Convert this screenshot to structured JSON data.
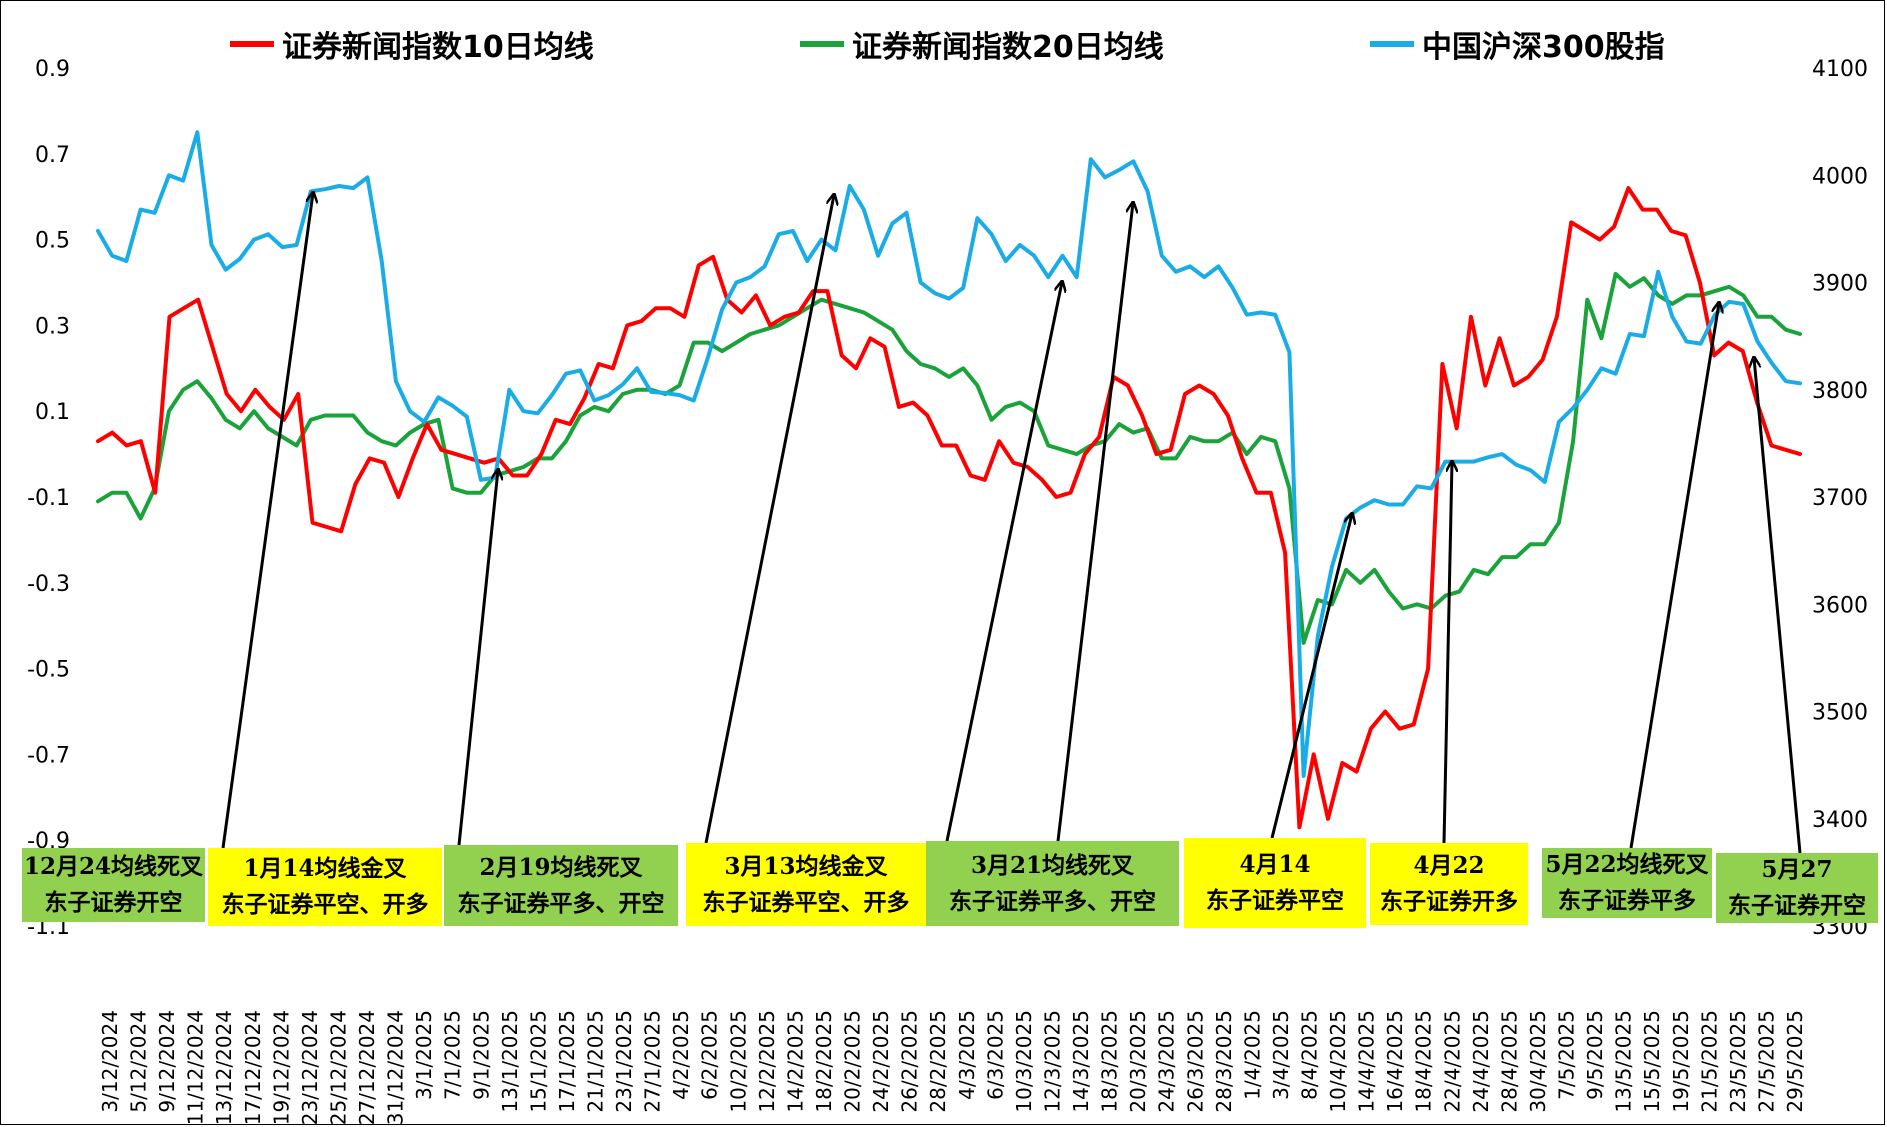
{
  "legend": [
    {
      "label": "证券新闻指数10日均线",
      "color": "#ff0000"
    },
    {
      "label": "证券新闻指数20日均线",
      "color": "#1aa33a"
    },
    {
      "label": "中国沪深300股指",
      "color": "#1aace6"
    }
  ],
  "colors": {
    "yellow_box": "#ffff00",
    "green_box": "#92d050",
    "arrow": "#000000"
  },
  "chart_data": {
    "type": "line",
    "x_tick_labels": [
      "3/12/2024",
      "5/12/2024",
      "9/12/2024",
      "11/12/2024",
      "13/12/2024",
      "17/12/2024",
      "19/12/2024",
      "23/12/2024",
      "25/12/2024",
      "27/12/2024",
      "31/12/2024",
      "3/1/2025",
      "7/1/2025",
      "9/1/2025",
      "13/1/2025",
      "15/1/2025",
      "17/1/2025",
      "21/1/2025",
      "23/1/2025",
      "27/1/2025",
      "4/2/2025",
      "6/2/2025",
      "10/2/2025",
      "12/2/2025",
      "14/2/2025",
      "18/2/2025",
      "20/2/2025",
      "24/2/2025",
      "26/2/2025",
      "28/2/2025",
      "4/3/2025",
      "6/3/2025",
      "10/3/2025",
      "12/3/2025",
      "14/3/2025",
      "18/3/2025",
      "20/3/2025",
      "24/3/2025",
      "26/3/2025",
      "28/3/2025",
      "1/4/2025",
      "3/4/2025",
      "8/4/2025",
      "10/4/2025",
      "14/4/2025",
      "16/4/2025",
      "18/4/2025",
      "22/4/2025",
      "24/4/2025",
      "28/4/2025",
      "30/4/2025",
      "7/5/2025",
      "9/5/2025",
      "13/5/2025",
      "15/5/2025",
      "19/5/2025",
      "21/5/2025",
      "23/5/2025",
      "27/5/2025",
      "29/5/2025"
    ],
    "y_left": {
      "ticks": [
        "0.9",
        "0.7",
        "0.5",
        "0.3",
        "0.1",
        "-0.1",
        "-0.3",
        "-0.5",
        "-0.7",
        "-0.9",
        "-1.1"
      ],
      "ylim": [
        -1.1,
        0.9
      ]
    },
    "y_right": {
      "ticks": [
        "4100",
        "4000",
        "3900",
        "3800",
        "3700",
        "3600",
        "3500",
        "3400",
        "3300"
      ],
      "ylim": [
        3300,
        4100
      ]
    },
    "series": [
      {
        "name": "证券新闻指数10日均线",
        "axis": "left",
        "color": "#ff0000",
        "values": [
          0.03,
          0.05,
          0.02,
          0.03,
          -0.09,
          0.32,
          0.34,
          0.36,
          0.25,
          0.14,
          0.1,
          0.15,
          0.11,
          0.08,
          0.14,
          -0.16,
          -0.17,
          -0.18,
          -0.07,
          -0.01,
          -0.02,
          -0.1,
          -0.01,
          0.07,
          0.01,
          0.0,
          -0.01,
          -0.02,
          -0.01,
          -0.05,
          -0.05,
          0.0,
          0.08,
          0.07,
          0.13,
          0.21,
          0.2,
          0.3,
          0.31,
          0.34,
          0.34,
          0.32,
          0.44,
          0.46,
          0.36,
          0.33,
          0.37,
          0.3,
          0.32,
          0.33,
          0.38,
          0.38,
          0.23,
          0.2,
          0.27,
          0.25,
          0.11,
          0.12,
          0.09,
          0.02,
          0.02,
          -0.05,
          -0.06,
          0.03,
          -0.02,
          -0.03,
          -0.06,
          -0.1,
          -0.09,
          0.0,
          0.04,
          0.18,
          0.16,
          0.09,
          0.0,
          0.01,
          0.14,
          0.16,
          0.14,
          0.09,
          -0.01,
          -0.09,
          -0.09,
          -0.23,
          -0.87,
          -0.7,
          -0.85,
          -0.72,
          -0.74,
          -0.64,
          -0.6,
          -0.64,
          -0.63,
          -0.5,
          0.21,
          0.06,
          0.32,
          0.16,
          0.27,
          0.16,
          0.18,
          0.22,
          0.32,
          0.54,
          0.52,
          0.5,
          0.53,
          0.62,
          0.57,
          0.57,
          0.52,
          0.51,
          0.4,
          0.23,
          0.26,
          0.24,
          0.12,
          0.02,
          0.01,
          0.0
        ]
      },
      {
        "name": "证券新闻指数20日均线",
        "axis": "left",
        "color": "#1aa33a",
        "values": [
          -0.11,
          -0.09,
          -0.09,
          -0.15,
          -0.08,
          0.1,
          0.15,
          0.17,
          0.13,
          0.08,
          0.06,
          0.1,
          0.06,
          0.04,
          0.02,
          0.08,
          0.09,
          0.09,
          0.09,
          0.05,
          0.03,
          0.02,
          0.05,
          0.07,
          0.08,
          -0.08,
          -0.09,
          -0.09,
          -0.05,
          -0.04,
          -0.03,
          -0.01,
          -0.01,
          0.03,
          0.09,
          0.11,
          0.1,
          0.14,
          0.15,
          0.15,
          0.14,
          0.16,
          0.26,
          0.26,
          0.24,
          0.26,
          0.28,
          0.29,
          0.3,
          0.32,
          0.34,
          0.36,
          0.35,
          0.34,
          0.33,
          0.31,
          0.29,
          0.24,
          0.21,
          0.2,
          0.18,
          0.2,
          0.16,
          0.08,
          0.11,
          0.12,
          0.1,
          0.02,
          0.01,
          0.0,
          0.02,
          0.03,
          0.07,
          0.05,
          0.06,
          -0.01,
          -0.01,
          0.04,
          0.03,
          0.03,
          0.05,
          0.0,
          0.04,
          0.03,
          -0.08,
          -0.44,
          -0.34,
          -0.35,
          -0.27,
          -0.3,
          -0.27,
          -0.32,
          -0.36,
          -0.35,
          -0.36,
          -0.33,
          -0.32,
          -0.27,
          -0.28,
          -0.24,
          -0.24,
          -0.21,
          -0.21,
          -0.16,
          0.03,
          0.36,
          0.27,
          0.42,
          0.39,
          0.41,
          0.37,
          0.35,
          0.37,
          0.37,
          0.38,
          0.39,
          0.37,
          0.32,
          0.32,
          0.29,
          0.28
        ]
      },
      {
        "name": "中国沪深300股指",
        "axis": "right",
        "color": "#1aace6",
        "values": [
          3948,
          3925,
          3920,
          3968,
          3965,
          4000,
          3995,
          4040,
          3935,
          3912,
          3922,
          3940,
          3945,
          3933,
          3935,
          3985,
          3987,
          3990,
          3988,
          3998,
          3920,
          3808,
          3780,
          3770,
          3793,
          3785,
          3775,
          3716,
          3718,
          3800,
          3780,
          3778,
          3795,
          3815,
          3818,
          3790,
          3795,
          3805,
          3820,
          3798,
          3797,
          3795,
          3790,
          3830,
          3875,
          3900,
          3905,
          3915,
          3945,
          3948,
          3920,
          3940,
          3930,
          3990,
          3968,
          3925,
          3955,
          3965,
          3900,
          3890,
          3885,
          3895,
          3960,
          3945,
          3920,
          3935,
          3925,
          3905,
          3925,
          3905,
          4015,
          3998,
          4005,
          4013,
          3985,
          3925,
          3910,
          3915,
          3905,
          3915,
          3895,
          3870,
          3872,
          3870,
          3835,
          3440,
          3570,
          3635,
          3680,
          3690,
          3697,
          3693,
          3693,
          3710,
          3708,
          3733,
          3733,
          3733,
          3737,
          3740,
          3730,
          3725,
          3714,
          3770,
          3783,
          3800,
          3820,
          3815,
          3852,
          3850,
          3910,
          3868,
          3845,
          3843,
          3870,
          3882,
          3880,
          3845,
          3825,
          3808,
          3806
        ]
      }
    ],
    "annotations": [
      {
        "line1": "12月24均线死叉",
        "line2": "东子证券开空",
        "color": "green"
      },
      {
        "line1": "1月14均线金叉",
        "line2": "东子证券平空、开多",
        "color": "yellow"
      },
      {
        "line1": "2月19均线死叉",
        "line2": "东子证券平多、开空",
        "color": "green"
      },
      {
        "line1": "3月13均线金叉",
        "line2": "东子证券平空、开多",
        "color": "yellow"
      },
      {
        "line1": "3月21均线死叉",
        "line2": "东子证券平多、开空",
        "color": "green"
      },
      {
        "line1": "4月14",
        "line2": "东子证券平空",
        "color": "yellow"
      },
      {
        "line1": "4月22",
        "line2": "东子证券开多",
        "color": "yellow"
      },
      {
        "line1": "5月22均线死叉",
        "line2": "东子证券平多",
        "color": "green"
      },
      {
        "line1": "5月27",
        "line2": "东子证券开空",
        "color": "green"
      }
    ]
  }
}
